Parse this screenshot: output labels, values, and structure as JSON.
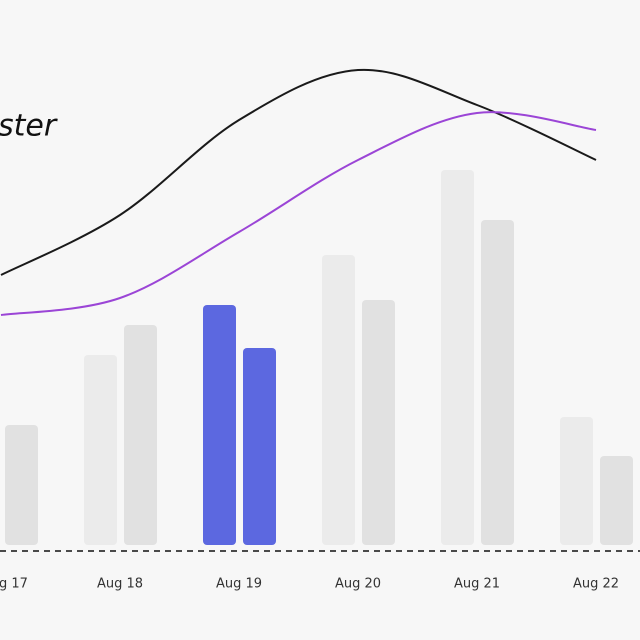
{
  "chart_data": {
    "type": "bar",
    "title": "ster",
    "categories": [
      "g 17",
      "Aug 18",
      "Aug 19",
      "Aug 20",
      "Aug 21",
      "Aug 22"
    ],
    "series": [
      {
        "color": "#ebebeb",
        "values": [
          null,
          190,
          240,
          290,
          375,
          128
        ]
      },
      {
        "color": "#e1e1e1",
        "values": [
          120,
          220,
          197,
          245,
          325,
          89
        ]
      }
    ],
    "lines": [
      {
        "color": "#1a1a1a",
        "values": [
          270,
          330,
          425,
          475,
          440,
          385
        ]
      },
      {
        "color": "#9b45d6",
        "values": [
          230,
          247,
          313,
          385,
          432,
          415
        ]
      }
    ],
    "highlight_category": "Aug 19",
    "highlight_color": "#5c68e0"
  }
}
